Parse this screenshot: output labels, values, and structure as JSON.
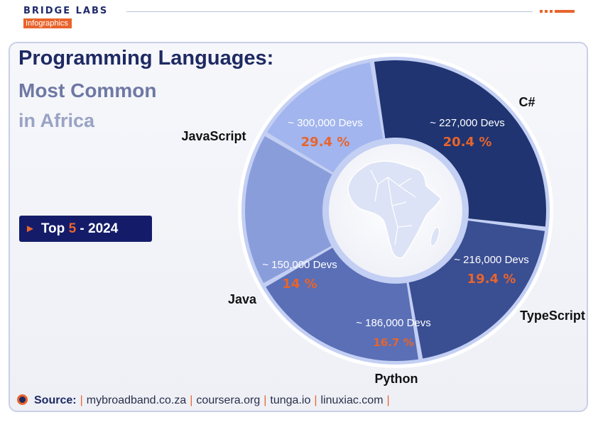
{
  "brand": {
    "name": "BRIDGE LABS",
    "tagline": "Infographics"
  },
  "title": {
    "line1": "Programming Languages:",
    "line2": "Most Common",
    "line3": "in Africa"
  },
  "badge": {
    "prefix": "Top",
    "number": "5",
    "suffix": "- 2024"
  },
  "colors": {
    "accent": "#e8642c",
    "navy": "#1e2a63"
  },
  "chart_data": {
    "type": "pie",
    "variant": "donut",
    "categories": [
      "JavaScript",
      "C#",
      "TypeScript",
      "Python",
      "Java"
    ],
    "values": [
      29.4,
      20.4,
      19.4,
      16.7,
      14
    ],
    "value_labels": [
      "29.4 %",
      "20.4 %",
      "19.4 %",
      "16.7 %",
      "14 %"
    ],
    "dev_labels": [
      "~ 300,000 Devs",
      "~ 227,000 Devs",
      "~ 216,000 Devs",
      "~ 186,000 Devs",
      "~ 150,000 Devs"
    ],
    "colors": [
      "#1f3470",
      "#3a4e92",
      "#5a6fb6",
      "#8a9ddb",
      "#a2b5ee"
    ],
    "center_icon": "africa-map-icon"
  },
  "source": {
    "label": "Source:",
    "items": [
      "mybroadband.co.za",
      "coursera.org",
      "tunga.io",
      "linuxiac.com"
    ]
  }
}
